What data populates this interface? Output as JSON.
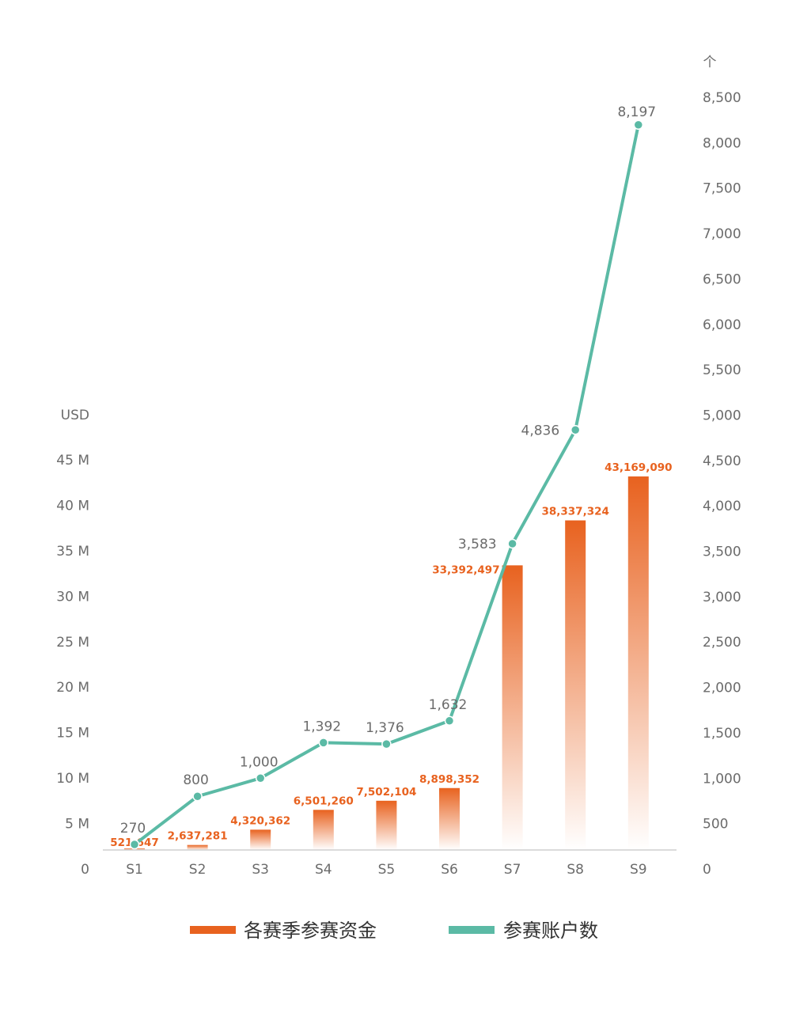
{
  "chart_data": {
    "type": "bar+line",
    "categories": [
      "S1",
      "S2",
      "S3",
      "S4",
      "S5",
      "S6",
      "S7",
      "S8",
      "S9"
    ],
    "y_left": {
      "unit": "USD",
      "ticks": [
        "0",
        "5 M",
        "10 M",
        "15 M",
        "20 M",
        "25 M",
        "30 M",
        "35 M",
        "40 M",
        "45 M"
      ],
      "ylim": [
        0,
        45000000
      ]
    },
    "y_right": {
      "unit": "个",
      "ticks": [
        "0",
        "500",
        "1,000",
        "1,500",
        "2,000",
        "2,500",
        "3,000",
        "3,500",
        "4,000",
        "4,500",
        "5,000",
        "5,500",
        "6,000",
        "6,500",
        "7,000",
        "7,500",
        "8,000",
        "8,500"
      ],
      "ylim": [
        0,
        8500
      ]
    },
    "series": [
      {
        "name": "各赛季参赛资金",
        "type": "bar",
        "axis": "left",
        "color": "#e8621f",
        "values": [
          521647,
          2637281,
          4320362,
          6501260,
          7502104,
          8898352,
          33392497,
          38337324,
          43169090
        ],
        "labels": [
          "521,647",
          "2,637,281",
          "4,320,362",
          "6,501,260",
          "7,502,104",
          "8,898,352",
          "33,392,497",
          "38,337,324",
          "43,169,090"
        ]
      },
      {
        "name": "参赛账户数",
        "type": "line",
        "axis": "right",
        "color": "#5bbaa5",
        "values": [
          270,
          800,
          1000,
          1392,
          1376,
          1632,
          3583,
          4836,
          8197
        ],
        "labels": [
          "270",
          "800",
          "1,000",
          "1,392",
          "1,376",
          "1,632",
          "3,583",
          "4,836",
          "8,197"
        ]
      }
    ],
    "legend": [
      "各赛季参赛资金",
      "参赛账户数"
    ],
    "legend_position": "bottom",
    "grid": false
  }
}
